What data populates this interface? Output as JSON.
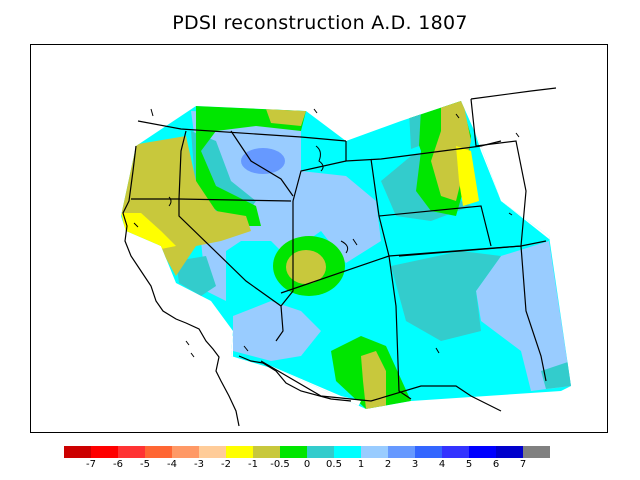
{
  "title": "PDSI reconstruction A.D. 1807",
  "map": {
    "type": "contour-map",
    "region_colors": {
      "dark_red": "#cc0000",
      "red": "#ff0000",
      "red2": "#ff3333",
      "orange_red": "#ff6633",
      "salmon": "#ff9966",
      "peach": "#ffcc99",
      "yellow": "#ffff00",
      "olive": "#c8c83c",
      "green": "#00e600",
      "teal": "#33cccc",
      "cyan": "#00ffff",
      "light_blue": "#99ccff",
      "cornflower": "#6699ff",
      "blue": "#3366ff",
      "med_blue": "#3333ff",
      "pure_blue": "#0000ff",
      "navy": "#0000cc",
      "gray": "#808080"
    }
  },
  "legend": {
    "colors": [
      "#cc0000",
      "#ff0000",
      "#ff3333",
      "#ff6633",
      "#ff9966",
      "#ffcc99",
      "#ffff00",
      "#c8c83c",
      "#00e600",
      "#33cccc",
      "#00ffff",
      "#99ccff",
      "#6699ff",
      "#3366ff",
      "#3333ff",
      "#0000ff",
      "#0000cc",
      "#808080"
    ],
    "ticks": [
      "-7",
      "-6",
      "-5",
      "-4",
      "-3",
      "-2",
      "-1",
      "-0.5",
      "0",
      "0.5",
      "1",
      "2",
      "3",
      "4",
      "5",
      "6",
      "7"
    ]
  }
}
